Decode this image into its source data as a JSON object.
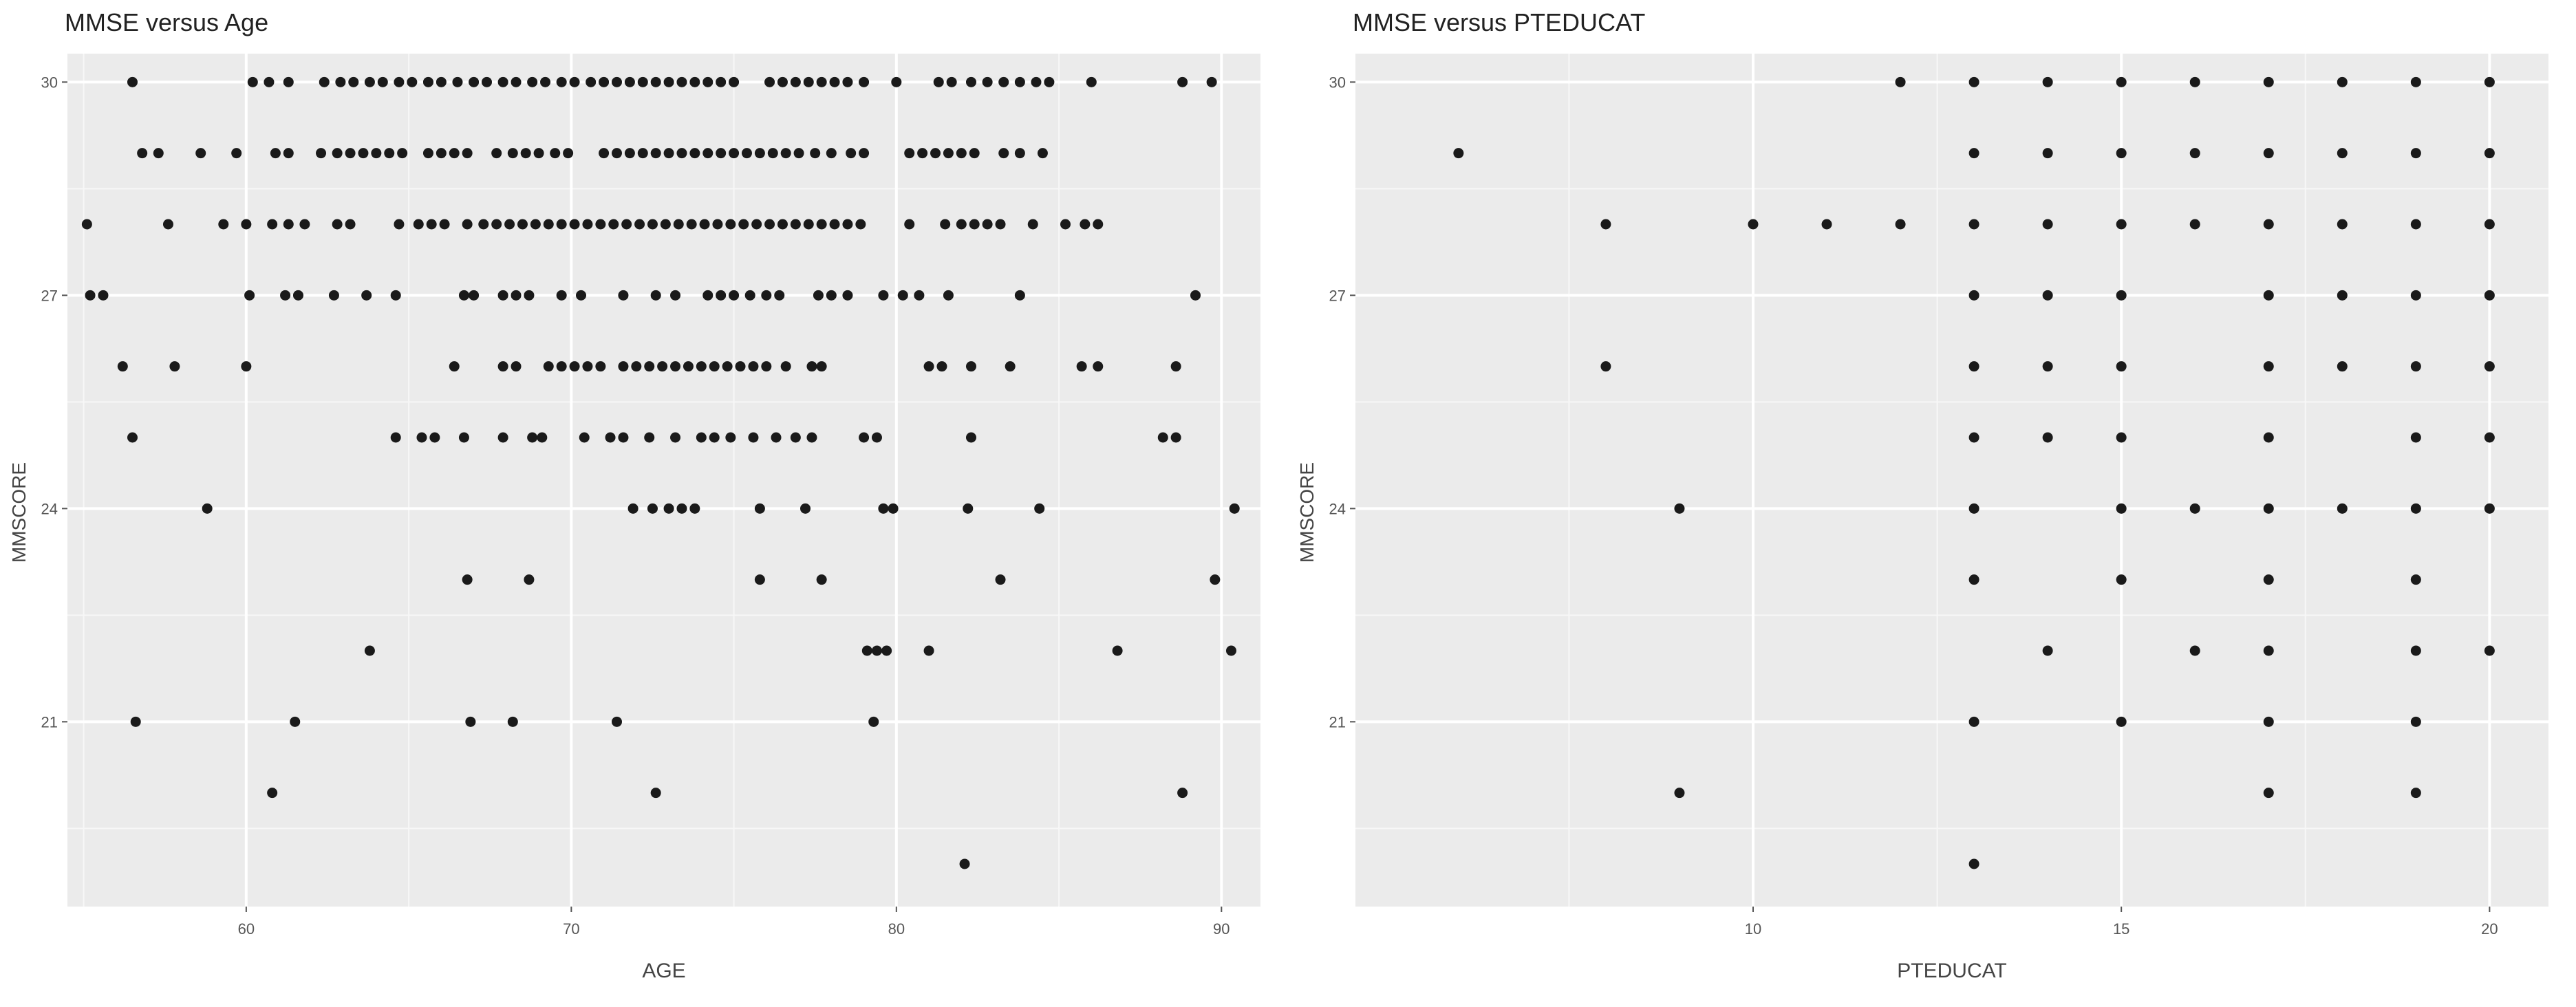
{
  "chart_data": [
    {
      "type": "scatter",
      "title": "MMSE versus Age",
      "xlabel": "AGE",
      "ylabel": "MMSCORE",
      "xlim": [
        54.5,
        91.2
      ],
      "ylim": [
        18.4,
        30.4
      ],
      "xticks": [
        60,
        70,
        80,
        90
      ],
      "yticks": [
        21,
        24,
        27,
        30
      ],
      "grid": true,
      "background": "#ebebeb",
      "point_color": "#1a1a1a",
      "rows": [
        {
          "y": 30,
          "x": [
            56.5,
            60.2,
            60.7,
            61.3,
            62.4,
            62.9,
            63.3,
            63.8,
            64.2,
            64.7,
            65.1,
            65.6,
            66.0,
            66.5,
            67.0,
            67.4,
            67.9,
            68.3,
            68.8,
            69.2,
            69.7,
            70.1,
            70.6,
            71.0,
            71.4,
            71.8,
            72.2,
            72.6,
            73.0,
            73.4,
            73.8,
            74.2,
            74.6,
            75.0,
            76.1,
            76.5,
            76.9,
            77.3,
            77.7,
            78.1,
            78.5,
            79.0,
            80.0,
            81.3,
            81.7,
            82.3,
            82.8,
            83.3,
            83.8,
            84.3,
            84.7,
            86.0,
            88.8,
            89.7
          ]
        },
        {
          "y": 29,
          "x": [
            56.8,
            57.3,
            58.6,
            59.7,
            60.9,
            61.3,
            62.3,
            62.8,
            63.2,
            63.6,
            64.0,
            64.4,
            64.8,
            65.6,
            66.0,
            66.4,
            66.8,
            67.7,
            68.2,
            68.6,
            69.0,
            69.5,
            69.9,
            71.0,
            71.4,
            71.8,
            72.2,
            72.6,
            73.0,
            73.4,
            73.8,
            74.2,
            74.6,
            75.0,
            75.4,
            75.8,
            76.2,
            76.6,
            77.0,
            77.5,
            78.0,
            78.6,
            79.0,
            80.4,
            80.8,
            81.2,
            81.6,
            82.0,
            82.4,
            83.3,
            83.8,
            84.5
          ]
        },
        {
          "y": 28,
          "x": [
            55.1,
            57.6,
            59.3,
            60.0,
            60.8,
            61.3,
            61.8,
            62.8,
            63.2,
            64.7,
            65.3,
            65.7,
            66.1,
            66.8,
            67.3,
            67.7,
            68.1,
            68.5,
            68.9,
            69.3,
            69.7,
            70.1,
            70.5,
            70.9,
            71.3,
            71.7,
            72.1,
            72.5,
            72.9,
            73.3,
            73.7,
            74.1,
            74.5,
            74.9,
            75.3,
            75.7,
            76.1,
            76.5,
            76.9,
            77.3,
            77.7,
            78.1,
            78.5,
            78.9,
            80.4,
            81.5,
            82.0,
            82.4,
            82.8,
            83.2,
            84.2,
            85.2,
            85.8,
            86.2
          ]
        },
        {
          "y": 27,
          "x": [
            55.2,
            55.6,
            60.1,
            61.2,
            61.6,
            62.7,
            63.7,
            64.6,
            66.7,
            67.0,
            67.9,
            68.3,
            68.7,
            69.7,
            70.3,
            71.6,
            72.6,
            73.2,
            74.2,
            74.6,
            75.0,
            75.5,
            76.0,
            76.4,
            77.6,
            78.0,
            78.5,
            79.6,
            80.2,
            80.7,
            81.6,
            83.8,
            89.2
          ]
        },
        {
          "y": 26,
          "x": [
            56.2,
            57.8,
            60.0,
            66.4,
            67.9,
            68.3,
            69.3,
            69.7,
            70.1,
            70.5,
            70.9,
            71.6,
            72.0,
            72.4,
            72.8,
            73.2,
            73.6,
            74.0,
            74.4,
            74.8,
            75.2,
            75.6,
            76.0,
            76.6,
            77.4,
            77.7,
            81.0,
            81.4,
            82.3,
            83.5,
            85.7,
            86.2,
            88.6
          ]
        },
        {
          "y": 25,
          "x": [
            56.5,
            64.6,
            65.4,
            65.8,
            66.7,
            67.9,
            68.8,
            69.1,
            70.4,
            71.2,
            71.6,
            72.4,
            73.2,
            74.0,
            74.4,
            74.9,
            75.6,
            76.3,
            76.9,
            77.4,
            79.0,
            79.4,
            82.3,
            88.2,
            88.6
          ]
        },
        {
          "y": 24,
          "x": [
            58.8,
            71.9,
            72.5,
            73.0,
            73.4,
            73.8,
            75.8,
            77.2,
            79.6,
            79.9,
            82.2,
            84.4,
            90.4
          ]
        },
        {
          "y": 23,
          "x": [
            66.8,
            68.7,
            75.8,
            77.7,
            83.2,
            89.8
          ]
        },
        {
          "y": 22,
          "x": [
            63.8,
            79.1,
            79.4,
            79.7,
            81.0,
            86.8,
            90.3
          ]
        },
        {
          "y": 21,
          "x": [
            56.6,
            61.5,
            66.9,
            68.2,
            71.4,
            79.3
          ]
        },
        {
          "y": 20,
          "x": [
            60.8,
            72.6,
            88.8
          ]
        },
        {
          "y": 19,
          "x": [
            82.1
          ]
        }
      ]
    },
    {
      "type": "scatter",
      "title": "MMSE versus PTEDUCAT",
      "xlabel": "PTEDUCAT",
      "ylabel": "MMSCORE",
      "xlim": [
        4.6,
        20.8
      ],
      "ylim": [
        18.4,
        30.4
      ],
      "xticks": [
        10,
        15,
        20
      ],
      "yticks": [
        21,
        24,
        27,
        30
      ],
      "grid": true,
      "background": "#ebebeb",
      "point_color": "#1a1a1a",
      "rows": [
        {
          "y": 30,
          "x": [
            12,
            13,
            14,
            15,
            16,
            17,
            18,
            19,
            20
          ]
        },
        {
          "y": 29,
          "x": [
            6,
            13,
            14,
            15,
            16,
            17,
            18,
            19,
            20
          ]
        },
        {
          "y": 28,
          "x": [
            8,
            10,
            11,
            12,
            13,
            14,
            15,
            16,
            17,
            18,
            19,
            20
          ]
        },
        {
          "y": 27,
          "x": [
            13,
            14,
            15,
            17,
            18,
            19,
            20
          ]
        },
        {
          "y": 26,
          "x": [
            8,
            13,
            14,
            15,
            17,
            18,
            19,
            20
          ]
        },
        {
          "y": 25,
          "x": [
            13,
            14,
            15,
            17,
            19,
            20
          ]
        },
        {
          "y": 24,
          "x": [
            9,
            13,
            15,
            16,
            17,
            18,
            19,
            20
          ]
        },
        {
          "y": 23,
          "x": [
            13,
            15,
            17,
            19
          ]
        },
        {
          "y": 22,
          "x": [
            14,
            16,
            17,
            19,
            20
          ]
        },
        {
          "y": 21,
          "x": [
            13,
            15,
            17,
            19
          ]
        },
        {
          "y": 20,
          "x": [
            9,
            17,
            19
          ]
        },
        {
          "y": 19,
          "x": [
            13
          ]
        }
      ]
    }
  ]
}
